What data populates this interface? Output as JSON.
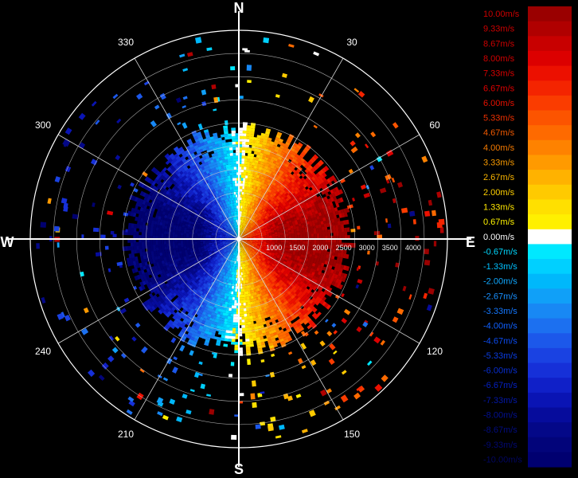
{
  "chart_data": {
    "type": "heatmap",
    "title": "",
    "subtitle": "",
    "projection": "polar",
    "cardinals": [
      "N",
      "E",
      "S",
      "W"
    ],
    "azimuth_labels": [
      {
        "deg": 30,
        "text": "30"
      },
      {
        "deg": 60,
        "text": "60"
      },
      {
        "deg": 120,
        "text": "120"
      },
      {
        "deg": 150,
        "text": "150"
      },
      {
        "deg": 210,
        "text": "210"
      },
      {
        "deg": 240,
        "text": "240"
      },
      {
        "deg": 300,
        "text": "300"
      },
      {
        "deg": 330,
        "text": "330"
      }
    ],
    "range_labels": [
      "1000",
      "1500",
      "2000",
      "2500",
      "3000",
      "3500",
      "4000"
    ],
    "range_max": 4500,
    "velocity_field": {
      "unit": "m/s",
      "pattern": "radial velocity dipole: positive (receding, red) on eastern half, negative (approaching, blue) on western half",
      "zero_isodop_azimuth": [
        0,
        180
      ],
      "peak_positive": 10.0,
      "peak_negative": -10.0,
      "dense_echo_max_range": 2500
    },
    "colorbar": {
      "labels": [
        "10.00m/s",
        "9.33m/s",
        "8.67m/s",
        "8.00m/s",
        "7.33m/s",
        "6.67m/s",
        "6.00m/s",
        "5.33m/s",
        "4.67m/s",
        "4.00m/s",
        "3.33m/s",
        "2.67m/s",
        "2.00m/s",
        "1.33m/s",
        "0.67m/s",
        "0.00m/s",
        "-0.67m/s",
        "-1.33m/s",
        "-2.00m/s",
        "-2.67m/s",
        "-3.33m/s",
        "-4.00m/s",
        "-4.67m/s",
        "-5.33m/s",
        "-6.00m/s",
        "-6.67m/s",
        "-7.33m/s",
        "-8.00m/s",
        "-8.67m/s",
        "-9.33m/s",
        "-10.00m/s"
      ],
      "colors": [
        "#9a0000",
        "#b00000",
        "#c80000",
        "#dc0000",
        "#ec1000",
        "#f42400",
        "#fa3c00",
        "#fc5400",
        "#fe6a00",
        "#fe8200",
        "#ff9a00",
        "#ffb200",
        "#ffca00",
        "#ffe000",
        "#fff000",
        "#ffffff",
        "#00e8ff",
        "#00d0ff",
        "#00b8fb",
        "#10a0f8",
        "#1888f4",
        "#1c70f0",
        "#1c58ea",
        "#1a42e2",
        "#1630d8",
        "#1020c8",
        "#0a14b4",
        "#060c9c",
        "#040888",
        "#02047a",
        "#000070"
      ],
      "text_colors": [
        "#cc0000",
        "#cc0000",
        "#cc0000",
        "#d00000",
        "#d80000",
        "#e00000",
        "#e81000",
        "#ef3000",
        "#f25a00",
        "#f57a00",
        "#f89a00",
        "#fab500",
        "#ffd000",
        "#ffe600",
        "#fff400",
        "#ffffff",
        "#00d8ff",
        "#00c0ff",
        "#10a8ff",
        "#1890ff",
        "#1478ff",
        "#1060ff",
        "#0c4cf0",
        "#0a3ce0",
        "#082ed0",
        "#0620c0",
        "#0418a8",
        "#031090",
        "#020c80",
        "#020870",
        "#020660"
      ]
    }
  }
}
